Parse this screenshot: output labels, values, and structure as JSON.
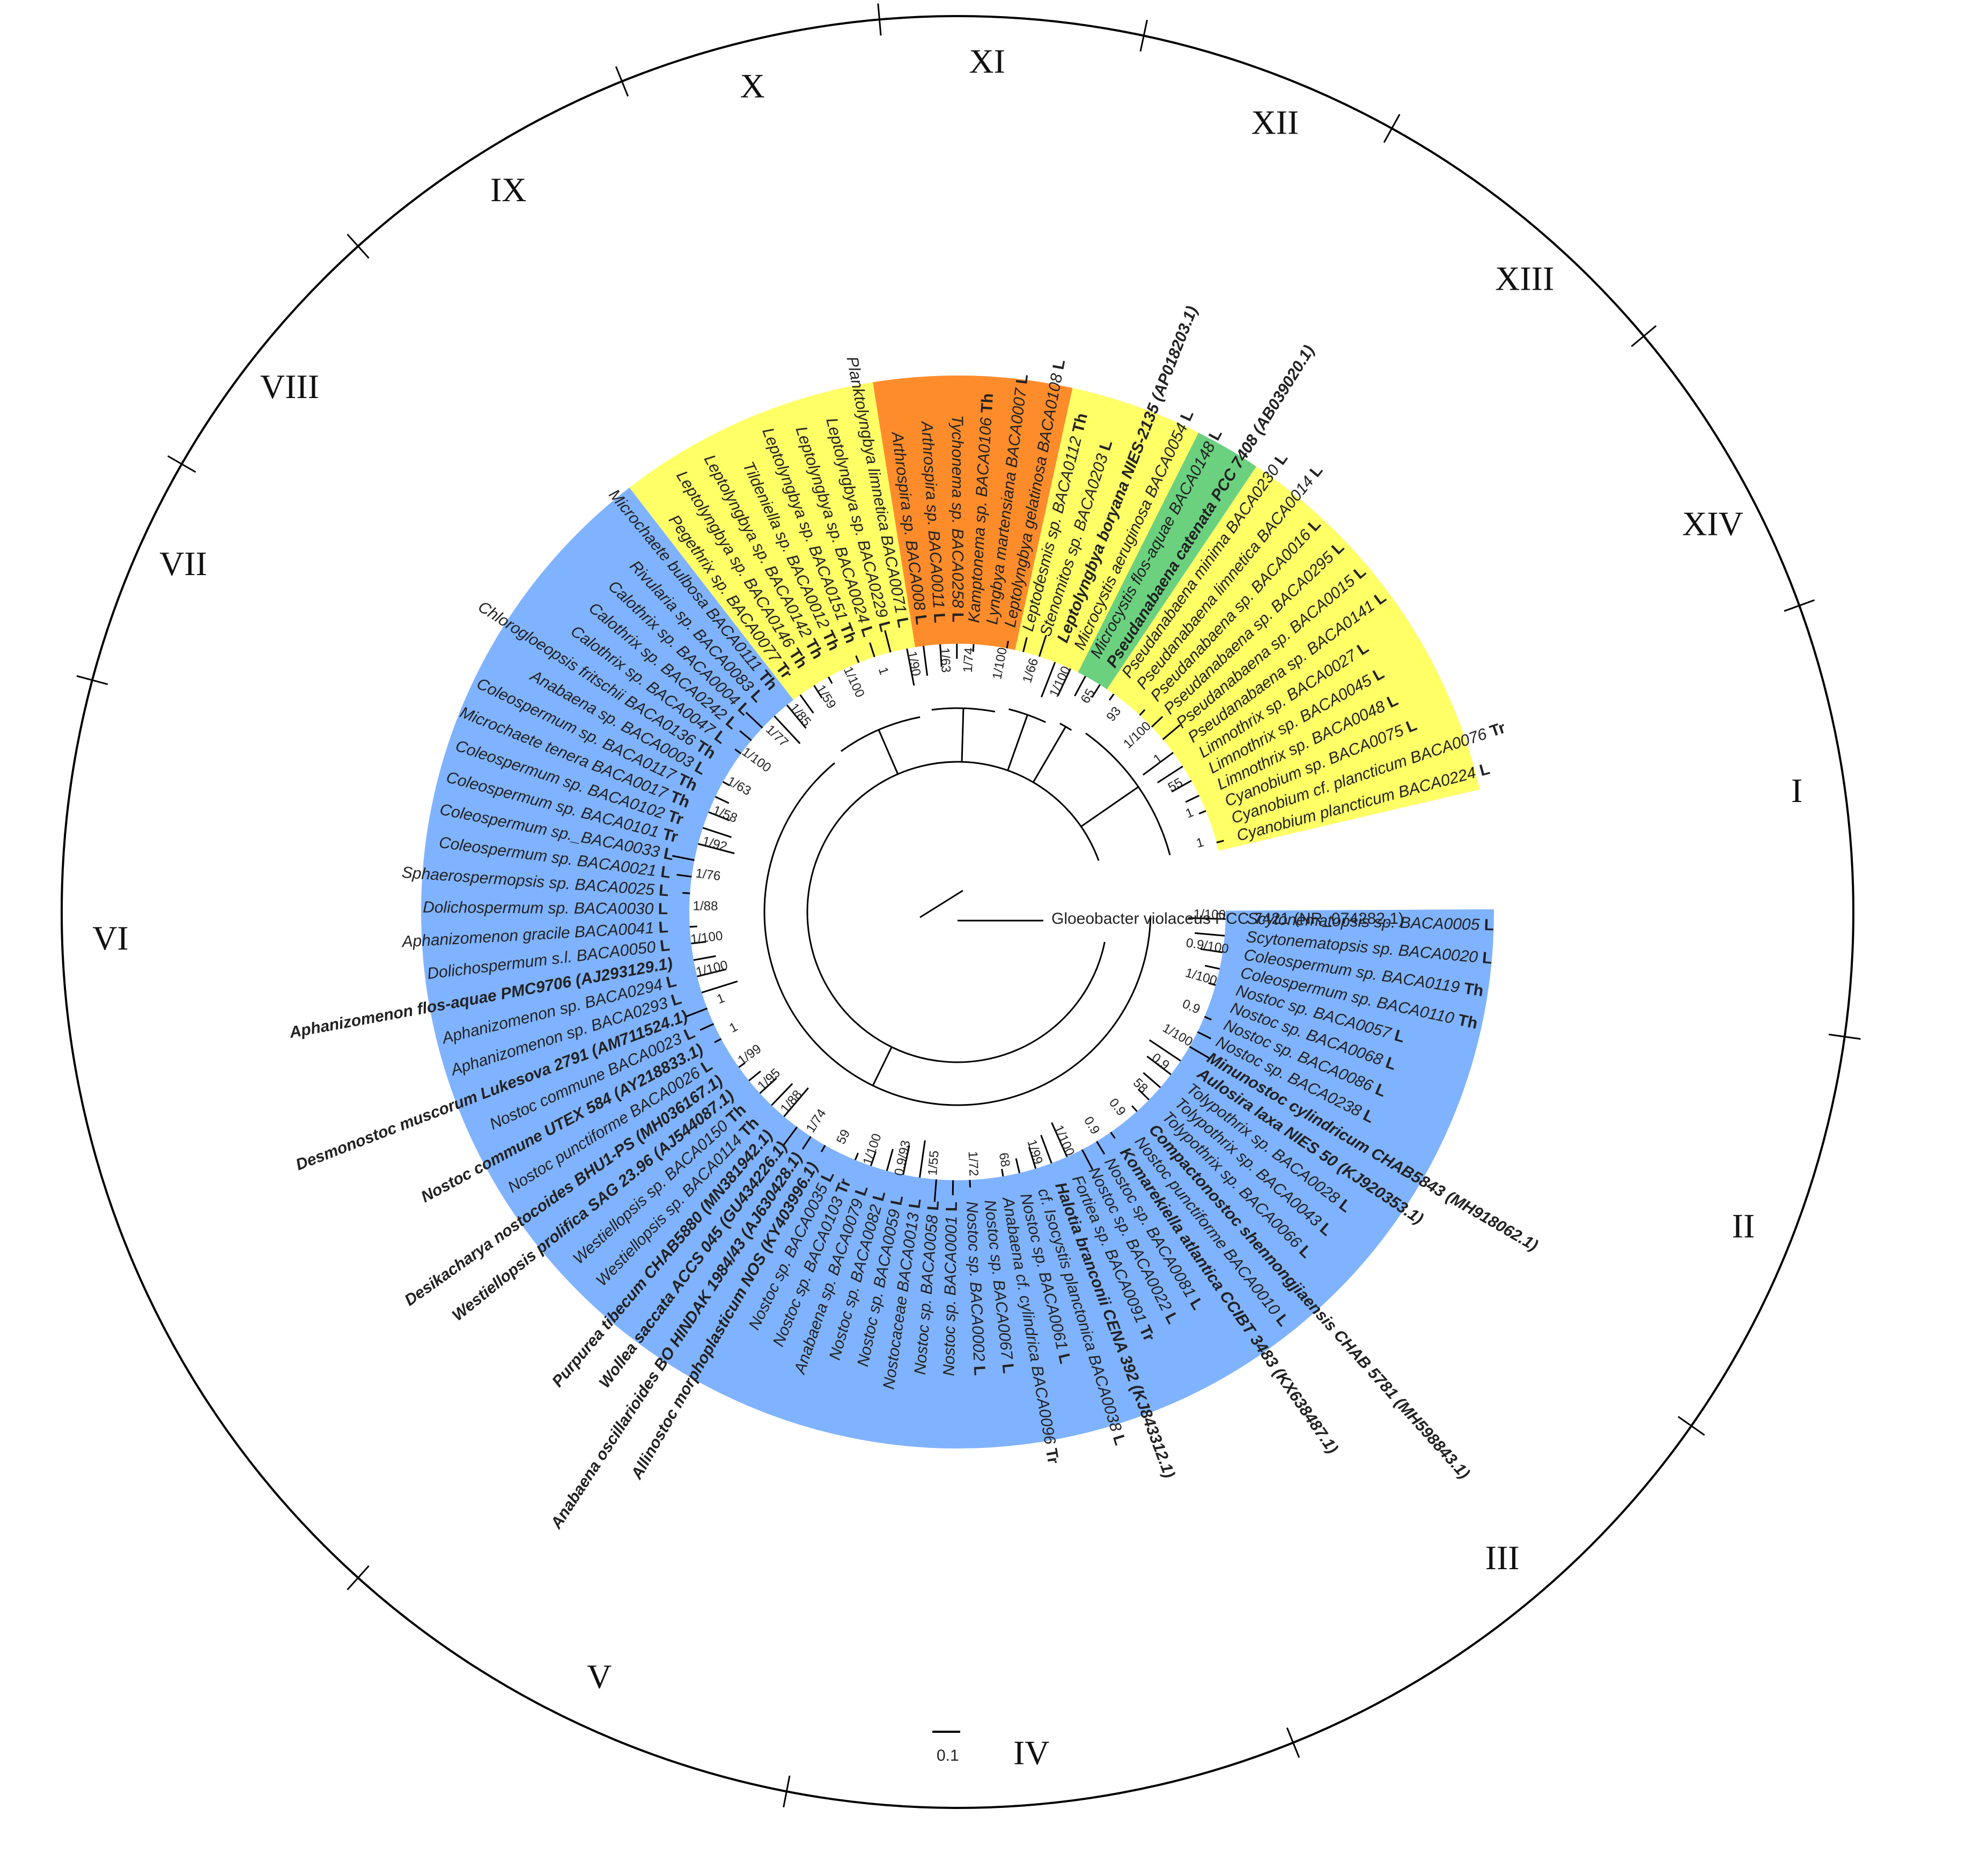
{
  "colors": {
    "blue": "#80b3ff",
    "yellow": "#ffff66",
    "orange": "#ff8c2b",
    "green": "#6bd17f",
    "line": "#000000",
    "label_box": "#fcfcfc"
  },
  "root_label": "Gloeobacter violaceus PCC 7421 (NR_074282.1)",
  "scale_bar_label": "0.1",
  "clade_labels": [
    "I",
    "II",
    "III",
    "IV",
    "V",
    "VI",
    "VII",
    "VIII",
    "IX",
    "X",
    "XI",
    "XII",
    "XIII",
    "XIV"
  ],
  "taxa": [
    {
      "name": "Scytonematopsis sp. BACA0005",
      "tag": "L"
    },
    {
      "name": "Scytonematopsis sp. BACA0020",
      "tag": "L"
    },
    {
      "name": "Coleospermum sp. BACA0119",
      "tag": "Th"
    },
    {
      "name": "Coleospermum sp. BACA0110",
      "tag": "Th"
    },
    {
      "name": "Nostoc sp. BACA0057",
      "tag": "L"
    },
    {
      "name": "Nostoc sp. BACA0068",
      "tag": "L"
    },
    {
      "name": "Nostoc sp. BACA0086",
      "tag": "L"
    },
    {
      "name": "Nostoc sp. BACA0238",
      "tag": "L"
    },
    {
      "name": "Minunostoc cylindricum CHAB5843 (MH918062.1)",
      "tag": ""
    },
    {
      "name": "Aulosira laxa NIES 50 (KJ920353.1)",
      "tag": ""
    },
    {
      "name": "Tolypothrix sp. BACA0028",
      "tag": "L"
    },
    {
      "name": "Tolypothrix sp. BACA0043",
      "tag": "L"
    },
    {
      "name": "Tolypothrix sp. BACA0066",
      "tag": "L"
    },
    {
      "name": "Compactonostoc shennongjiaensis CHAB 5781 (MH598843.1)",
      "tag": ""
    },
    {
      "name": "Nostoc punctiforme BACA0010",
      "tag": "L"
    },
    {
      "name": "Komarekiella atlantica CCIBT 3483 (KX638487.1)",
      "tag": ""
    },
    {
      "name": "Nostoc sp. BACA0081",
      "tag": "L"
    },
    {
      "name": "Nostoc sp. BACA0022",
      "tag": "L"
    },
    {
      "name": "Fortiea sp. BACA0091",
      "tag": "Tr"
    },
    {
      "name": "Halotia branconii CENA 392 (KJ843312.1)",
      "tag": ""
    },
    {
      "name": "cf. Isocystis planctonica BACA0038",
      "tag": "L"
    },
    {
      "name": "Nostoc sp. BACA0061",
      "tag": "L"
    },
    {
      "name": "Anabaena cf. cylindrica BACA0096",
      "tag": "Tr"
    },
    {
      "name": "Nostoc sp. BACA0067",
      "tag": "L"
    },
    {
      "name": "Nostoc sp. BACA0002",
      "tag": "L"
    },
    {
      "name": "Nostoc sp. BACA0001",
      "tag": "L"
    },
    {
      "name": "Nostoc sp. BACA0058",
      "tag": "L"
    },
    {
      "name": "Nostocaceae BACA0013",
      "tag": "L"
    },
    {
      "name": "Nostoc sp. BACA0059",
      "tag": "L"
    },
    {
      "name": "Nostoc sp. BACA0082",
      "tag": "L"
    },
    {
      "name": "Anabaena sp. BACA0079",
      "tag": "L"
    },
    {
      "name": "Nostoc sp. BACA0103",
      "tag": "Tr"
    },
    {
      "name": "Nostoc sp. BACA0035",
      "tag": "L"
    },
    {
      "name": "Allinostoc morphoplasticum NOS (KY403996.1)",
      "tag": ""
    },
    {
      "name": "Anabaena oscillarioides BO HINDAK 1984/43 (AJ630428.1)",
      "tag": ""
    },
    {
      "name": "Wollea saccata ACCS 045 (GU434226.1)",
      "tag": ""
    },
    {
      "name": "Purpurea tibecum CHAB5880 (MN381942.1)",
      "tag": ""
    },
    {
      "name": "Westiellopsis sp. BACA0114",
      "tag": "Th"
    },
    {
      "name": "Westiellopsis sp. BACA0150",
      "tag": "Th"
    },
    {
      "name": "Westiellopsis prolifica SAG 23.96 (AJ544087.1)",
      "tag": ""
    },
    {
      "name": "Desikacharya nostocoides BHU1-PS (MH036167.1)",
      "tag": ""
    },
    {
      "name": "Nostoc punctiforme BACA0026",
      "tag": "L"
    },
    {
      "name": "Nostoc commune UTEX 584 (AY218833.1)",
      "tag": ""
    },
    {
      "name": "Nostoc commune BACA0023",
      "tag": "L"
    },
    {
      "name": "Desmonostoc muscorum Lukesova 2791 (AM711524.1)",
      "tag": ""
    },
    {
      "name": "Aphanizomenon sp. BACA0293",
      "tag": "L"
    },
    {
      "name": "Aphanizomenon sp. BACA0294",
      "tag": "L"
    },
    {
      "name": "Aphanizomenon flos-aquae PMC9706 (AJ293129.1)",
      "tag": ""
    },
    {
      "name": "Dolichospermum s.l. BACA0050",
      "tag": "L"
    },
    {
      "name": "Aphanizomenon gracile BACA0041",
      "tag": "L"
    },
    {
      "name": "Dolichospermum sp. BACA0030",
      "tag": "L"
    },
    {
      "name": "Sphaerospermopsis sp. BACA0025",
      "tag": "L"
    },
    {
      "name": "Coleospermum sp. BACA0021",
      "tag": "L"
    },
    {
      "name": "Coleospermum sp._BACA0033",
      "tag": "L"
    },
    {
      "name": "Coleospermum sp. BACA0101",
      "tag": "Tr"
    },
    {
      "name": "Coleospermum sp. BACA0102",
      "tag": "Tr"
    },
    {
      "name": "Microchaete tenera BACA0017",
      "tag": "Th"
    },
    {
      "name": "Coleospermum sp. BACA0117",
      "tag": "Th"
    },
    {
      "name": "Anabaena sp. BACA0003",
      "tag": "L"
    },
    {
      "name": "Chlorogloeopsis fritschii BACA0136",
      "tag": "Th"
    },
    {
      "name": "Calothrix sp. BACA0047",
      "tag": "L"
    },
    {
      "name": "Calothrix sp. BACA0242",
      "tag": "L"
    },
    {
      "name": "Calothrix sp. BACA0004",
      "tag": "L"
    },
    {
      "name": "Rivularia sp. BACA0083",
      "tag": "L"
    },
    {
      "name": "Microchaete bulbosa BACA0111",
      "tag": "Th"
    },
    {
      "name": "Pegethrix sp. BACA0077",
      "tag": "Tr"
    },
    {
      "name": "Leptolyngbya sp. BACA0146",
      "tag": "Th"
    },
    {
      "name": "Leptolyngbya sp. BACA0142",
      "tag": "Th"
    },
    {
      "name": "Tildeniella sp. BACA0012",
      "tag": "Th"
    },
    {
      "name": "Leptolyngbya sp. BACA0151",
      "tag": "Th"
    },
    {
      "name": "Leptolyngbya sp. BACA0024",
      "tag": "L"
    },
    {
      "name": "Leptolyngbya sp. BACA0229",
      "tag": "L"
    },
    {
      "name": "Planktolyngbya limnetica BACA0071",
      "tag": "L"
    },
    {
      "name": "Arthrospira sp. BACA008",
      "tag": "L"
    },
    {
      "name": "Arthrospira sp. BACA0011",
      "tag": "L"
    },
    {
      "name": "Tychonema sp. BACA0258",
      "tag": "L"
    },
    {
      "name": "Kamptonema sp. BACA0106",
      "tag": "Th"
    },
    {
      "name": "Lyngbya martensiana BACA0007",
      "tag": "L"
    },
    {
      "name": "Leptolyngbya gelatinosa BACA0108",
      "tag": "L"
    },
    {
      "name": "Leptodesmis sp. BACA0112",
      "tag": "Th"
    },
    {
      "name": "Stenomitos sp. BACA0203",
      "tag": "L"
    },
    {
      "name": "Leptolyngbya boryana NIES-2135 (AP018203.1)",
      "tag": ""
    },
    {
      "name": "Microcystis aeruginosa BACA0054",
      "tag": "L"
    },
    {
      "name": "Microcystis flos-aquae BACA0148",
      "tag": "L"
    },
    {
      "name": "Pseudanabaena catenata PCC 7408 (AB039020.1)",
      "tag": ""
    },
    {
      "name": "Pseudanabaena minima BACA0230",
      "tag": "L"
    },
    {
      "name": "Pseudanabaena limnetica BACA0014",
      "tag": "L"
    },
    {
      "name": "Pseudanabaena sp. BACA0016",
      "tag": "L"
    },
    {
      "name": "Pseudanabaena sp. BACA0295",
      "tag": "L"
    },
    {
      "name": "Pseudanabaena sp. BACA0015",
      "tag": "L"
    },
    {
      "name": "Pseudanabaena sp. BACA0141",
      "tag": "L"
    },
    {
      "name": "Limnothrix sp. BACA0027",
      "tag": "L"
    },
    {
      "name": "Limnothrix sp. BACA0045",
      "tag": "L"
    },
    {
      "name": "Limnothrix sp. BACA0048",
      "tag": "L"
    },
    {
      "name": "Cyanobium sp. BACA0075",
      "tag": "L"
    },
    {
      "name": "Cyanobium cf. plancticum BACA0076",
      "tag": "Tr"
    },
    {
      "name": "Cyanobium plancticum BACA0224",
      "tag": "L"
    }
  ],
  "support_values": [
    "1/100",
    "0.9/100",
    "1/100",
    "0.9",
    "1/100",
    "0.9",
    "58",
    "0.9",
    "0.9",
    "1/100",
    "1/99",
    "68",
    "1/72",
    "1/55",
    "0.9/93",
    "1/100",
    "59",
    "1/74",
    "1/88",
    "1/95",
    "1/99",
    "1",
    "1",
    "1/100",
    "1/100",
    "1/88",
    "1/76",
    "1/92",
    "1/58",
    "1/63",
    "1/100",
    "1/77",
    "1/85",
    "1/59",
    "1/100",
    "1",
    "1/90",
    "1/63",
    "1/74",
    "1/100",
    "1/66",
    "1/100",
    "65",
    "93",
    "1/100",
    "1",
    "55",
    "1",
    "1"
  ]
}
